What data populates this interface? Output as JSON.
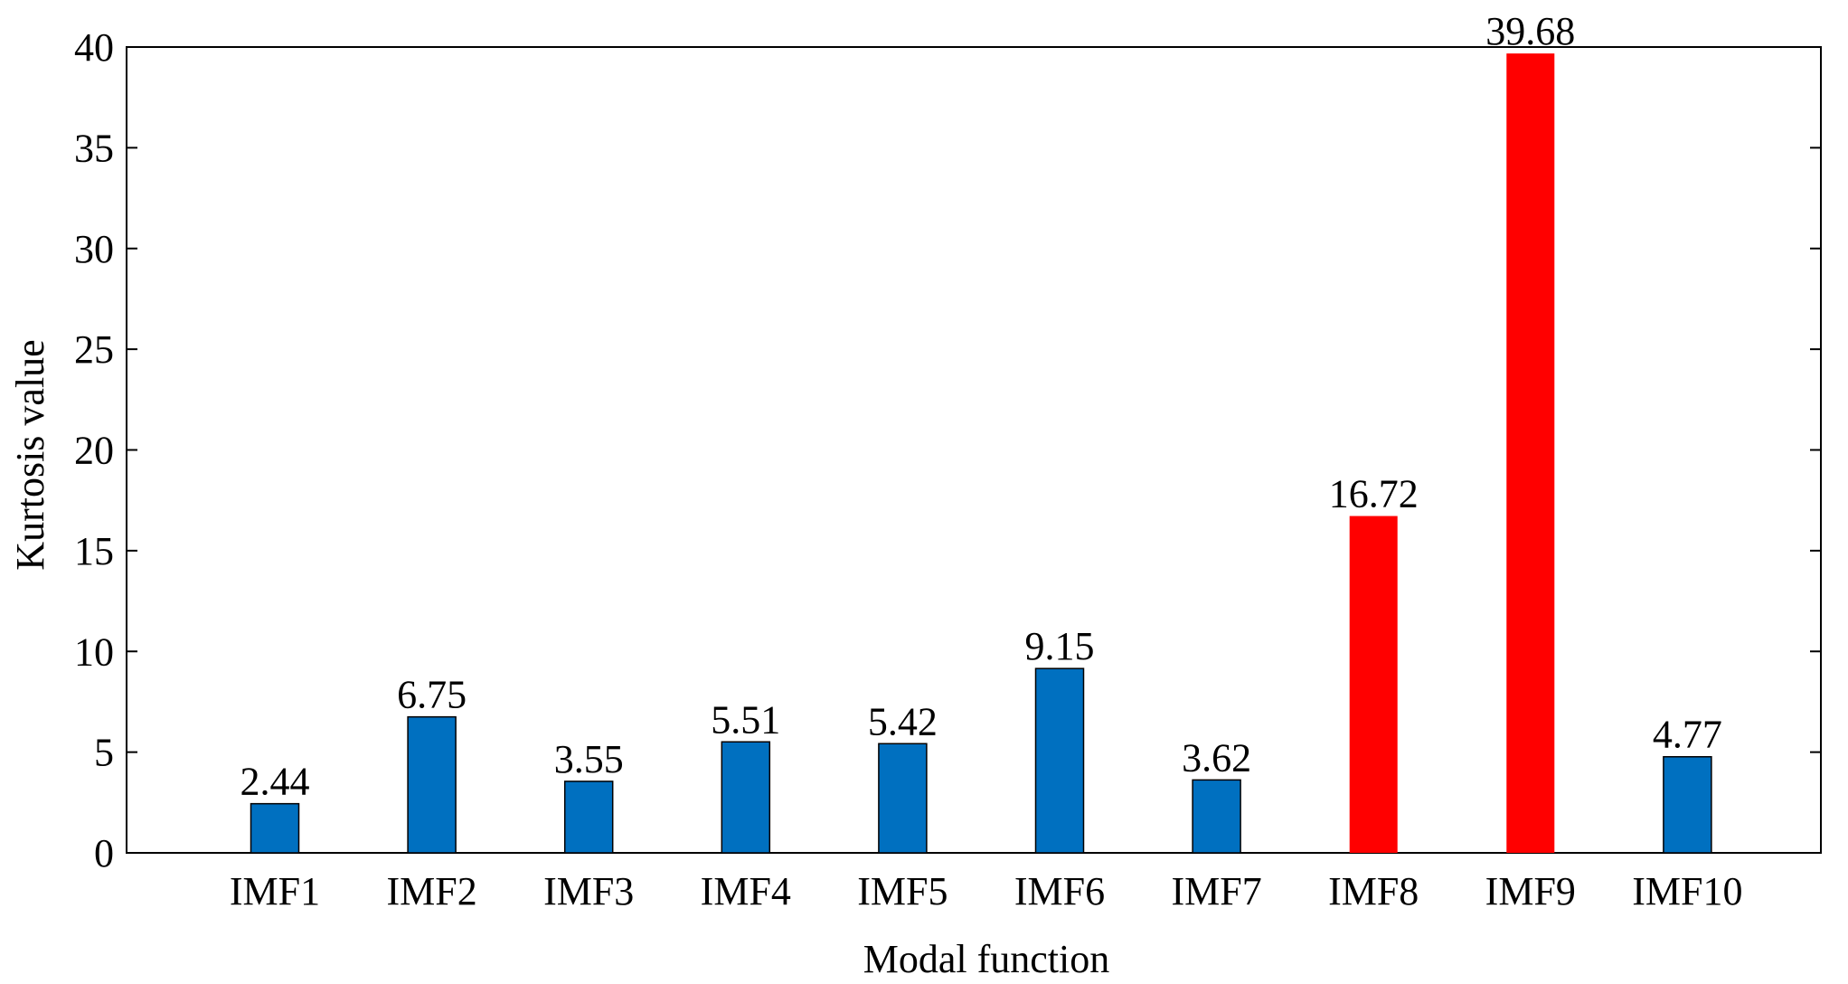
{
  "chart_data": {
    "type": "bar",
    "title": "",
    "xlabel": "Modal function",
    "ylabel": "Kurtosis value",
    "categories": [
      "IMF1",
      "IMF2",
      "IMF3",
      "IMF4",
      "IMF5",
      "IMF6",
      "IMF7",
      "IMF8",
      "IMF9",
      "IMF10"
    ],
    "values": [
      2.44,
      6.75,
      3.55,
      5.51,
      5.42,
      9.15,
      3.62,
      16.72,
      39.68,
      4.77
    ],
    "data_labels": [
      "2.44",
      "6.75",
      "3.55",
      "5.51",
      "5.42",
      "9.15",
      "3.62",
      "16.72",
      "39.68",
      "4.77"
    ],
    "ylim": [
      0,
      40
    ],
    "yticks": [
      0,
      5,
      10,
      15,
      20,
      25,
      30,
      35,
      40
    ],
    "grid": false,
    "legend": "none",
    "colors": {
      "default_bar": "#0070c0",
      "highlight_bar": "#ff0000",
      "axis": "#000000"
    },
    "highlighted_categories": [
      "IMF8",
      "IMF9"
    ]
  }
}
